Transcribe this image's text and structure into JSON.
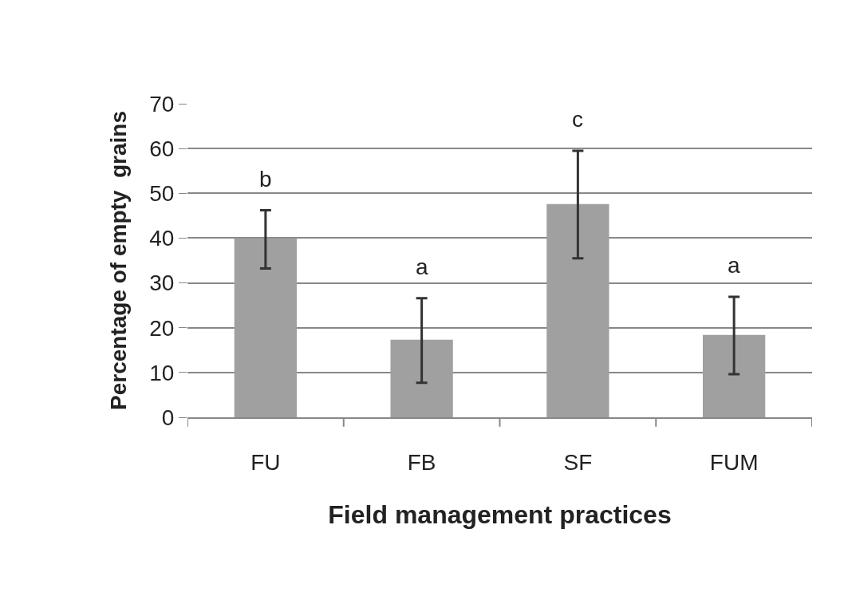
{
  "chart_data": {
    "type": "bar",
    "xlabel": "Field management practices",
    "ylabel": "Percentage of empty  grains",
    "categories": [
      "FU",
      "FB",
      "SF",
      "FUM"
    ],
    "values": [
      40,
      17.3,
      47.6,
      18.4
    ],
    "errors": [
      [
        33.2,
        46.2
      ],
      [
        7.7,
        26.6
      ],
      [
        35.5,
        59.5
      ],
      [
        9.6,
        26.9
      ]
    ],
    "color": "#a0a0a0",
    "ylim": [
      0,
      70
    ],
    "yticks": [
      0,
      10,
      20,
      30,
      40,
      50,
      60,
      70
    ],
    "grid": "y",
    "annotations": [
      "b",
      "a",
      "c",
      "a"
    ]
  }
}
